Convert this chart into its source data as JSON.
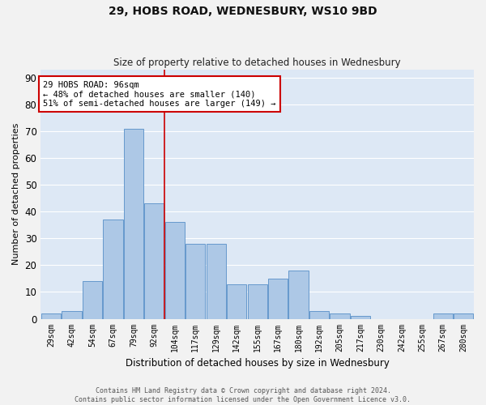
{
  "title1": "29, HOBS ROAD, WEDNESBURY, WS10 9BD",
  "title2": "Size of property relative to detached houses in Wednesbury",
  "xlabel": "Distribution of detached houses by size in Wednesbury",
  "ylabel": "Number of detached properties",
  "footer1": "Contains HM Land Registry data © Crown copyright and database right 2024.",
  "footer2": "Contains public sector information licensed under the Open Government Licence v3.0.",
  "annotation_title": "29 HOBS ROAD: 96sqm",
  "annotation_line1": "← 48% of detached houses are smaller (140)",
  "annotation_line2": "51% of semi-detached houses are larger (149) →",
  "categories": [
    "29sqm",
    "42sqm",
    "54sqm",
    "67sqm",
    "79sqm",
    "92sqm",
    "104sqm",
    "117sqm",
    "129sqm",
    "142sqm",
    "155sqm",
    "167sqm",
    "180sqm",
    "192sqm",
    "205sqm",
    "217sqm",
    "230sqm",
    "242sqm",
    "255sqm",
    "267sqm",
    "280sqm"
  ],
  "values": [
    2,
    3,
    14,
    37,
    71,
    43,
    36,
    28,
    28,
    13,
    13,
    15,
    18,
    3,
    2,
    1,
    0,
    0,
    0,
    2,
    2
  ],
  "bar_color": "#adc8e6",
  "bar_edge_color": "#6699cc",
  "vline_color": "#cc0000",
  "vline_x": 5.5,
  "annotation_box_color": "#ffffff",
  "annotation_box_edge": "#cc0000",
  "bg_color": "#dde8f5",
  "grid_color": "#ffffff",
  "fig_bg_color": "#f2f2f2",
  "ylim": [
    0,
    93
  ],
  "yticks": [
    0,
    10,
    20,
    30,
    40,
    50,
    60,
    70,
    80,
    90
  ]
}
